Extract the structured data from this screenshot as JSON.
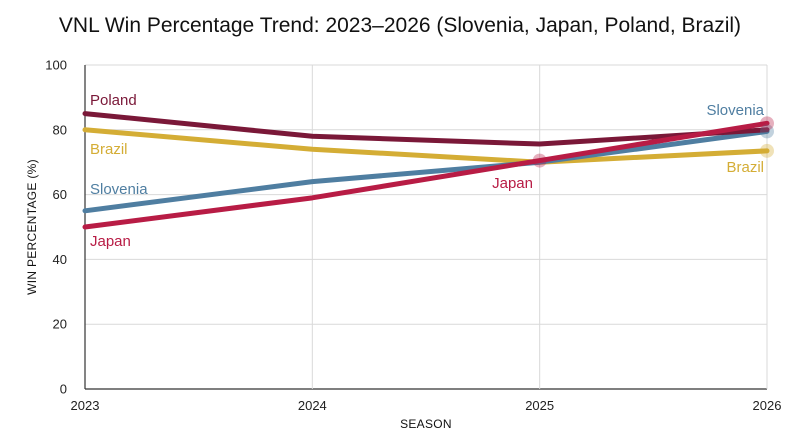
{
  "chart_data": {
    "type": "line",
    "title": "VNL Win Percentage Trend: 2023–2026 (Slovenia, Japan, Poland, Brazil)",
    "xlabel": "SEASON",
    "ylabel": "WIN PERCENTAGE (%)",
    "x": [
      "2023",
      "2024",
      "2025",
      "2026"
    ],
    "ylim": [
      0,
      100
    ],
    "yticks": [
      "0",
      "20",
      "40",
      "60",
      "80",
      "100"
    ],
    "grid": true,
    "series": [
      {
        "name": "Poland",
        "color": "#7a1838",
        "values": [
          85.0,
          78.0,
          75.6,
          80.0
        ]
      },
      {
        "name": "Brazil",
        "color": "#d4ad35",
        "values": [
          80.0,
          74.0,
          70.0,
          73.5
        ]
      },
      {
        "name": "Slovenia",
        "color": "#4f7ea1",
        "values": [
          55.0,
          64.0,
          70.0,
          79.5
        ]
      },
      {
        "name": "Japan",
        "color": "#b81c45",
        "values": [
          50.0,
          59.0,
          70.5,
          82.0
        ]
      }
    ]
  }
}
